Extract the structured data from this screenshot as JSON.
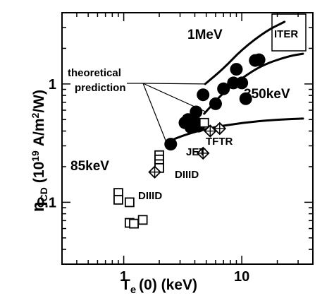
{
  "chart_data": {
    "type": "scatter",
    "title": "",
    "xlabel_main": "T",
    "xlabel_sub": "e",
    "xlabel_rest": "(0) (keV)",
    "ylabel_main": "η",
    "ylabel_sub": "CD",
    "ylabel_rest": "(10",
    "ylabel_exp": "19",
    "ylabel_units": "A/m",
    "ylabel_units_exp": "2",
    "ylabel_units_end": "/W)",
    "x_scale": "log",
    "y_scale": "log",
    "xlim": [
      0.3,
      40
    ],
    "ylim": [
      0.03,
      4
    ],
    "grid": false,
    "x_ticks": [
      {
        "value": 1,
        "label": "1"
      },
      {
        "value": 10,
        "label": "10"
      }
    ],
    "y_ticks": [
      {
        "value": 0.1,
        "label": "0.1"
      },
      {
        "value": 1,
        "label": "1"
      }
    ],
    "series": [
      {
        "marker": "filled-circle",
        "points": [
          {
            "x": 2.5,
            "y": 0.31
          },
          {
            "x": 3.3,
            "y": 0.47
          },
          {
            "x": 3.5,
            "y": 0.5
          },
          {
            "x": 3.7,
            "y": 0.43
          },
          {
            "x": 4.0,
            "y": 0.48
          },
          {
            "x": 4.1,
            "y": 0.58
          },
          {
            "x": 4.3,
            "y": 0.44
          },
          {
            "x": 4.7,
            "y": 0.81
          },
          {
            "x": 6.0,
            "y": 0.68
          },
          {
            "x": 7.0,
            "y": 0.91
          },
          {
            "x": 8.5,
            "y": 1.02
          },
          {
            "x": 9.0,
            "y": 1.33
          },
          {
            "x": 10.0,
            "y": 1.02
          },
          {
            "x": 10.8,
            "y": 0.75
          },
          {
            "x": 13.0,
            "y": 1.58
          },
          {
            "x": 14.0,
            "y": 1.6
          }
        ]
      },
      {
        "marker": "open-square",
        "points": [
          {
            "x": 0.9,
            "y": 0.12
          },
          {
            "x": 0.9,
            "y": 0.105
          },
          {
            "x": 1.12,
            "y": 0.1
          },
          {
            "x": 1.12,
            "y": 0.067
          },
          {
            "x": 1.22,
            "y": 0.066
          },
          {
            "x": 1.45,
            "y": 0.071
          },
          {
            "x": 2.0,
            "y": 0.25
          },
          {
            "x": 2.0,
            "y": 0.23
          },
          {
            "x": 2.0,
            "y": 0.21
          },
          {
            "x": 2.0,
            "y": 0.195
          },
          {
            "x": 4.8,
            "y": 0.47
          }
        ]
      },
      {
        "marker": "open-diamond-cross",
        "points": [
          {
            "x": 1.83,
            "y": 0.18
          },
          {
            "x": 4.7,
            "y": 0.26
          },
          {
            "x": 5.4,
            "y": 0.4
          },
          {
            "x": 6.5,
            "y": 0.42
          }
        ]
      }
    ],
    "curves": [
      {
        "label": "1MeV",
        "points": [
          [
            4.9,
            1.0
          ],
          [
            7,
            1.35
          ],
          [
            10,
            1.95
          ],
          [
            16,
            2.8
          ],
          [
            23,
            3.35
          ]
        ]
      },
      {
        "label": "350keV",
        "points": [
          [
            4.8,
            0.56
          ],
          [
            7,
            0.85
          ],
          [
            10,
            1.12
          ],
          [
            15,
            1.45
          ],
          [
            25,
            1.72
          ],
          [
            33,
            1.8
          ]
        ]
      },
      {
        "label": "85keV",
        "points": [
          [
            2.3,
            0.32
          ],
          [
            3,
            0.36
          ],
          [
            5,
            0.42
          ],
          [
            10,
            0.47
          ],
          [
            20,
            0.5
          ],
          [
            33,
            0.51
          ]
        ]
      }
    ],
    "annotations": {
      "theoretical_line1": "theoretical",
      "theoretical_line2": "prediction",
      "label_1mev": "1MeV",
      "label_350kev": "350keV",
      "label_85kev": "85keV",
      "label_iter": "ITER",
      "label_tftr": "TFTR",
      "label_jet": "JET",
      "label_diiid_1": "DIIID",
      "label_diiid_2": "DIIID"
    }
  }
}
